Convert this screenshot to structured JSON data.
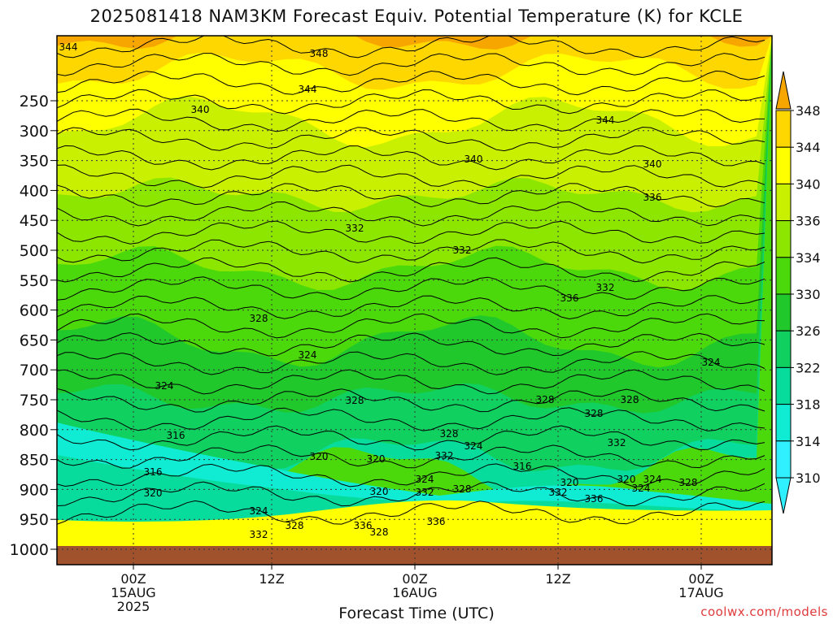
{
  "chart_data": {
    "type": "contour",
    "title": "2025081418 NAM3KM Forecast Equiv. Potential Temperature (K) for KCLE",
    "xlabel": "Forecast Time (UTC)",
    "ylabel": "",
    "credit": "coolwx.com/models",
    "y_ticks": [
      "250",
      "300",
      "350",
      "400",
      "450",
      "500",
      "550",
      "600",
      "650",
      "700",
      "750",
      "800",
      "850",
      "900",
      "950",
      "1000"
    ],
    "y_values": [
      250,
      300,
      350,
      400,
      450,
      500,
      550,
      600,
      650,
      700,
      750,
      800,
      850,
      900,
      950,
      1000
    ],
    "x_ticks": [
      {
        "line1": "00Z",
        "line2": "15AUG",
        "line3": "2025"
      },
      {
        "line1": "12Z",
        "line2": "",
        "line3": ""
      },
      {
        "line1": "00Z",
        "line2": "16AUG",
        "line3": ""
      },
      {
        "line1": "12Z",
        "line2": "",
        "line3": ""
      },
      {
        "line1": "00Z",
        "line2": "17AUG",
        "line3": ""
      }
    ],
    "colorbar": {
      "labels": [
        "348",
        "344",
        "340",
        "336",
        "334",
        "330",
        "326",
        "322",
        "318",
        "314",
        "310"
      ],
      "colors": [
        "#f7a600",
        "#ffd700",
        "#ffff00",
        "#c8f000",
        "#8ce600",
        "#4cd90c",
        "#20c82c",
        "#10d060",
        "#08dc9c",
        "#10ecd4",
        "#30f0ff"
      ]
    },
    "contour_labels": [
      {
        "text": "344"
      },
      {
        "text": "348"
      },
      {
        "text": "344"
      },
      {
        "text": "340"
      },
      {
        "text": "344"
      },
      {
        "text": "340"
      },
      {
        "text": "340"
      },
      {
        "text": "336"
      },
      {
        "text": "332"
      },
      {
        "text": "332"
      },
      {
        "text": "336"
      },
      {
        "text": "332"
      },
      {
        "text": "328"
      },
      {
        "text": "324"
      },
      {
        "text": "324"
      },
      {
        "text": "324"
      },
      {
        "text": "328"
      },
      {
        "text": "328"
      },
      {
        "text": "328"
      },
      {
        "text": "316"
      },
      {
        "text": "320"
      },
      {
        "text": "328"
      },
      {
        "text": "324"
      },
      {
        "text": "320"
      },
      {
        "text": "332"
      },
      {
        "text": "316"
      },
      {
        "text": "320"
      },
      {
        "text": "320"
      },
      {
        "text": "324"
      },
      {
        "text": "328"
      },
      {
        "text": "324"
      },
      {
        "text": "332"
      },
      {
        "text": "316"
      },
      {
        "text": "328"
      },
      {
        "text": "320"
      },
      {
        "text": "332"
      },
      {
        "text": "336"
      },
      {
        "text": "324"
      },
      {
        "text": "328"
      },
      {
        "text": "320"
      },
      {
        "text": "324"
      },
      {
        "text": "328"
      },
      {
        "text": "332"
      },
      {
        "text": "336"
      },
      {
        "text": "328"
      },
      {
        "text": "336"
      },
      {
        "text": "332"
      }
    ],
    "grid": true,
    "ground_color": "#a0522d"
  }
}
